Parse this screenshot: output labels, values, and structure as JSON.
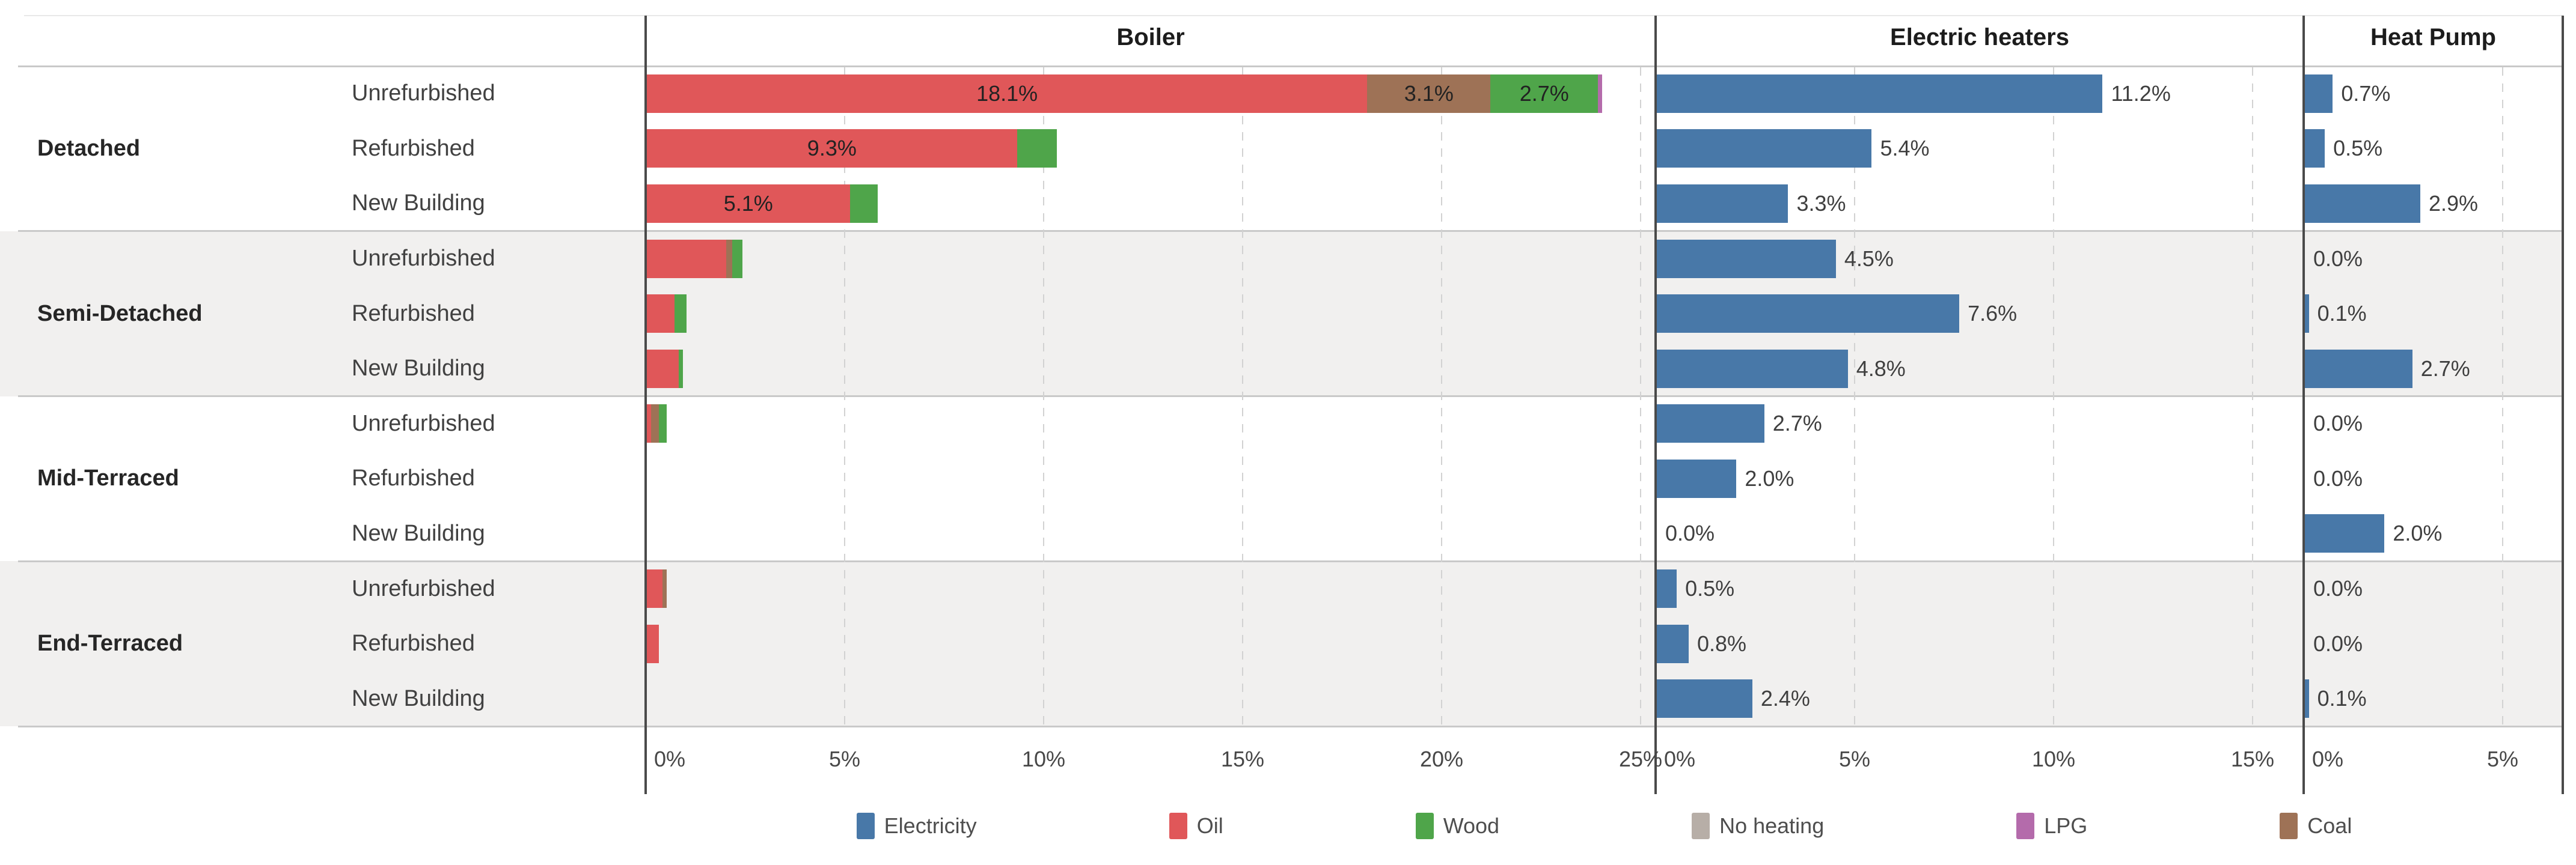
{
  "chart_data": {
    "type": "bar",
    "orientation": "horizontal",
    "title": "",
    "panels": [
      {
        "id": "boiler",
        "title": "Boiler",
        "stacked": true,
        "tick_values": [
          0,
          5,
          10,
          15,
          20,
          25
        ],
        "axis_ticks": [
          "0%",
          "5%",
          "10%",
          "15%",
          "20%",
          "25%"
        ],
        "axis_max": 25.3
      },
      {
        "id": "electric",
        "title": "Electric heaters",
        "stacked": false,
        "tick_values": [
          0,
          5,
          10,
          15
        ],
        "axis_ticks": [
          "0%",
          "5%",
          "10%",
          "15%"
        ],
        "axis_max": 16.3
      },
      {
        "id": "heat_pump",
        "title": "Heat Pump",
        "stacked": false,
        "tick_values": [
          0,
          5
        ],
        "axis_ticks": [
          "0%",
          "5%"
        ],
        "axis_max": 6.5
      }
    ],
    "row_groups": [
      {
        "label": "Detached",
        "rows": [
          {
            "label": "Unrefurbished",
            "boiler_segments": [
              {
                "series": "Oil",
                "value": 18.1,
                "label": "18.1%"
              },
              {
                "series": "Coal",
                "value": 3.1,
                "label": "3.1%"
              },
              {
                "series": "Wood",
                "value": 2.7,
                "label": "2.7%"
              },
              {
                "series": "LPG",
                "value": 0.1,
                "label": ""
              }
            ],
            "electric": {
              "value": 11.2,
              "label": "11.2%"
            },
            "heat_pump": {
              "value": 0.7,
              "label": "0.7%"
            }
          },
          {
            "label": "Refurbished",
            "boiler_segments": [
              {
                "series": "Oil",
                "value": 9.3,
                "label": "9.3%"
              },
              {
                "series": "Wood",
                "value": 1.0,
                "label": ""
              }
            ],
            "electric": {
              "value": 5.4,
              "label": "5.4%"
            },
            "heat_pump": {
              "value": 0.5,
              "label": "0.5%"
            }
          },
          {
            "label": "New Building",
            "boiler_segments": [
              {
                "series": "Oil",
                "value": 5.1,
                "label": "5.1%"
              },
              {
                "series": "Wood",
                "value": 0.7,
                "label": ""
              }
            ],
            "electric": {
              "value": 3.3,
              "label": "3.3%"
            },
            "heat_pump": {
              "value": 2.9,
              "label": "2.9%"
            }
          }
        ]
      },
      {
        "label": "Semi-Detached",
        "rows": [
          {
            "label": "Unrefurbished",
            "boiler_segments": [
              {
                "series": "Oil",
                "value": 2.0,
                "label": ""
              },
              {
                "series": "Coal",
                "value": 0.15,
                "label": ""
              },
              {
                "series": "Wood",
                "value": 0.25,
                "label": ""
              }
            ],
            "electric": {
              "value": 4.5,
              "label": "4.5%"
            },
            "heat_pump": {
              "value": 0.0,
              "label": "0.0%"
            }
          },
          {
            "label": "Refurbished",
            "boiler_segments": [
              {
                "series": "Oil",
                "value": 0.7,
                "label": ""
              },
              {
                "series": "Wood",
                "value": 0.3,
                "label": ""
              }
            ],
            "electric": {
              "value": 7.6,
              "label": "7.6%"
            },
            "heat_pump": {
              "value": 0.1,
              "label": "0.1%"
            }
          },
          {
            "label": "New Building",
            "boiler_segments": [
              {
                "series": "Oil",
                "value": 0.8,
                "label": ""
              },
              {
                "series": "Wood",
                "value": 0.1,
                "label": ""
              }
            ],
            "electric": {
              "value": 4.8,
              "label": "4.8%"
            },
            "heat_pump": {
              "value": 2.7,
              "label": "2.7%"
            }
          }
        ]
      },
      {
        "label": "Mid-Terraced",
        "rows": [
          {
            "label": "Unrefurbished",
            "boiler_segments": [
              {
                "series": "Oil",
                "value": 0.1,
                "label": ""
              },
              {
                "series": "Coal",
                "value": 0.2,
                "label": ""
              },
              {
                "series": "Wood",
                "value": 0.2,
                "label": ""
              }
            ],
            "electric": {
              "value": 2.7,
              "label": "2.7%"
            },
            "heat_pump": {
              "value": 0.0,
              "label": "0.0%"
            }
          },
          {
            "label": "Refurbished",
            "boiler_segments": [],
            "electric": {
              "value": 2.0,
              "label": "2.0%"
            },
            "heat_pump": {
              "value": 0.0,
              "label": "0.0%"
            }
          },
          {
            "label": "New Building",
            "boiler_segments": [],
            "electric": {
              "value": 0.0,
              "label": "0.0%"
            },
            "heat_pump": {
              "value": 2.0,
              "label": "2.0%"
            }
          }
        ]
      },
      {
        "label": "End-Terraced",
        "rows": [
          {
            "label": "Unrefurbished",
            "boiler_segments": [
              {
                "series": "Oil",
                "value": 0.4,
                "label": ""
              },
              {
                "series": "Coal",
                "value": 0.1,
                "label": ""
              }
            ],
            "electric": {
              "value": 0.5,
              "label": "0.5%"
            },
            "heat_pump": {
              "value": 0.0,
              "label": "0.0%"
            }
          },
          {
            "label": "Refurbished",
            "boiler_segments": [
              {
                "series": "Oil",
                "value": 0.3,
                "label": ""
              }
            ],
            "electric": {
              "value": 0.8,
              "label": "0.8%"
            },
            "heat_pump": {
              "value": 0.0,
              "label": "0.0%"
            }
          },
          {
            "label": "New Building",
            "boiler_segments": [],
            "electric": {
              "value": 2.4,
              "label": "2.4%"
            },
            "heat_pump": {
              "value": 0.1,
              "label": "0.1%"
            }
          }
        ]
      }
    ],
    "legend": [
      {
        "label": "Electricity",
        "color": "#4878a8"
      },
      {
        "label": "Oil",
        "color": "#e05759"
      },
      {
        "label": "Wood",
        "color": "#4fa54a"
      },
      {
        "label": "No heating",
        "color": "#b7aea7"
      },
      {
        "label": "LPG",
        "color": "#b46bab"
      },
      {
        "label": "Coal",
        "color": "#9e7256"
      }
    ],
    "colors": {
      "Electricity": "#4878a8",
      "Oil": "#e05759",
      "Wood": "#4fa54a",
      "No heating": "#b7aea7",
      "LPG": "#b46bab",
      "Coal": "#9e7256"
    },
    "layout_hints": {
      "grid": "dashed vertical gridlines every 5%",
      "legend_position": "bottom",
      "band_shading": "alternating white / light gray per building-type group"
    }
  }
}
